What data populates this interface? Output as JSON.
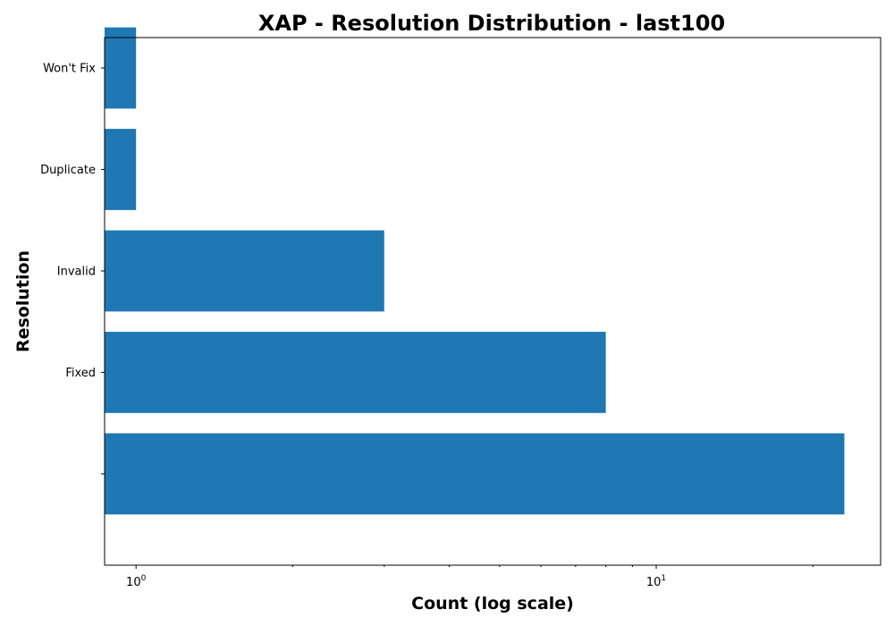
{
  "chart_data": {
    "type": "bar",
    "orientation": "horizontal",
    "title": "XAP - Resolution Distribution - last100",
    "xlabel": "Count (log scale)",
    "ylabel": "Resolution",
    "x_scale": "log",
    "xlim": [
      0.87,
      27
    ],
    "x_ticks": [
      {
        "value": 1,
        "base": "10",
        "exp": "0"
      },
      {
        "value": 10,
        "base": "10",
        "exp": "1"
      }
    ],
    "categories": [
      "",
      "Fixed",
      "Invalid",
      "Duplicate",
      "Won't Fix"
    ],
    "values": [
      23,
      8,
      3,
      1,
      1
    ],
    "bar_color": "#1f77b4",
    "grid": false
  }
}
